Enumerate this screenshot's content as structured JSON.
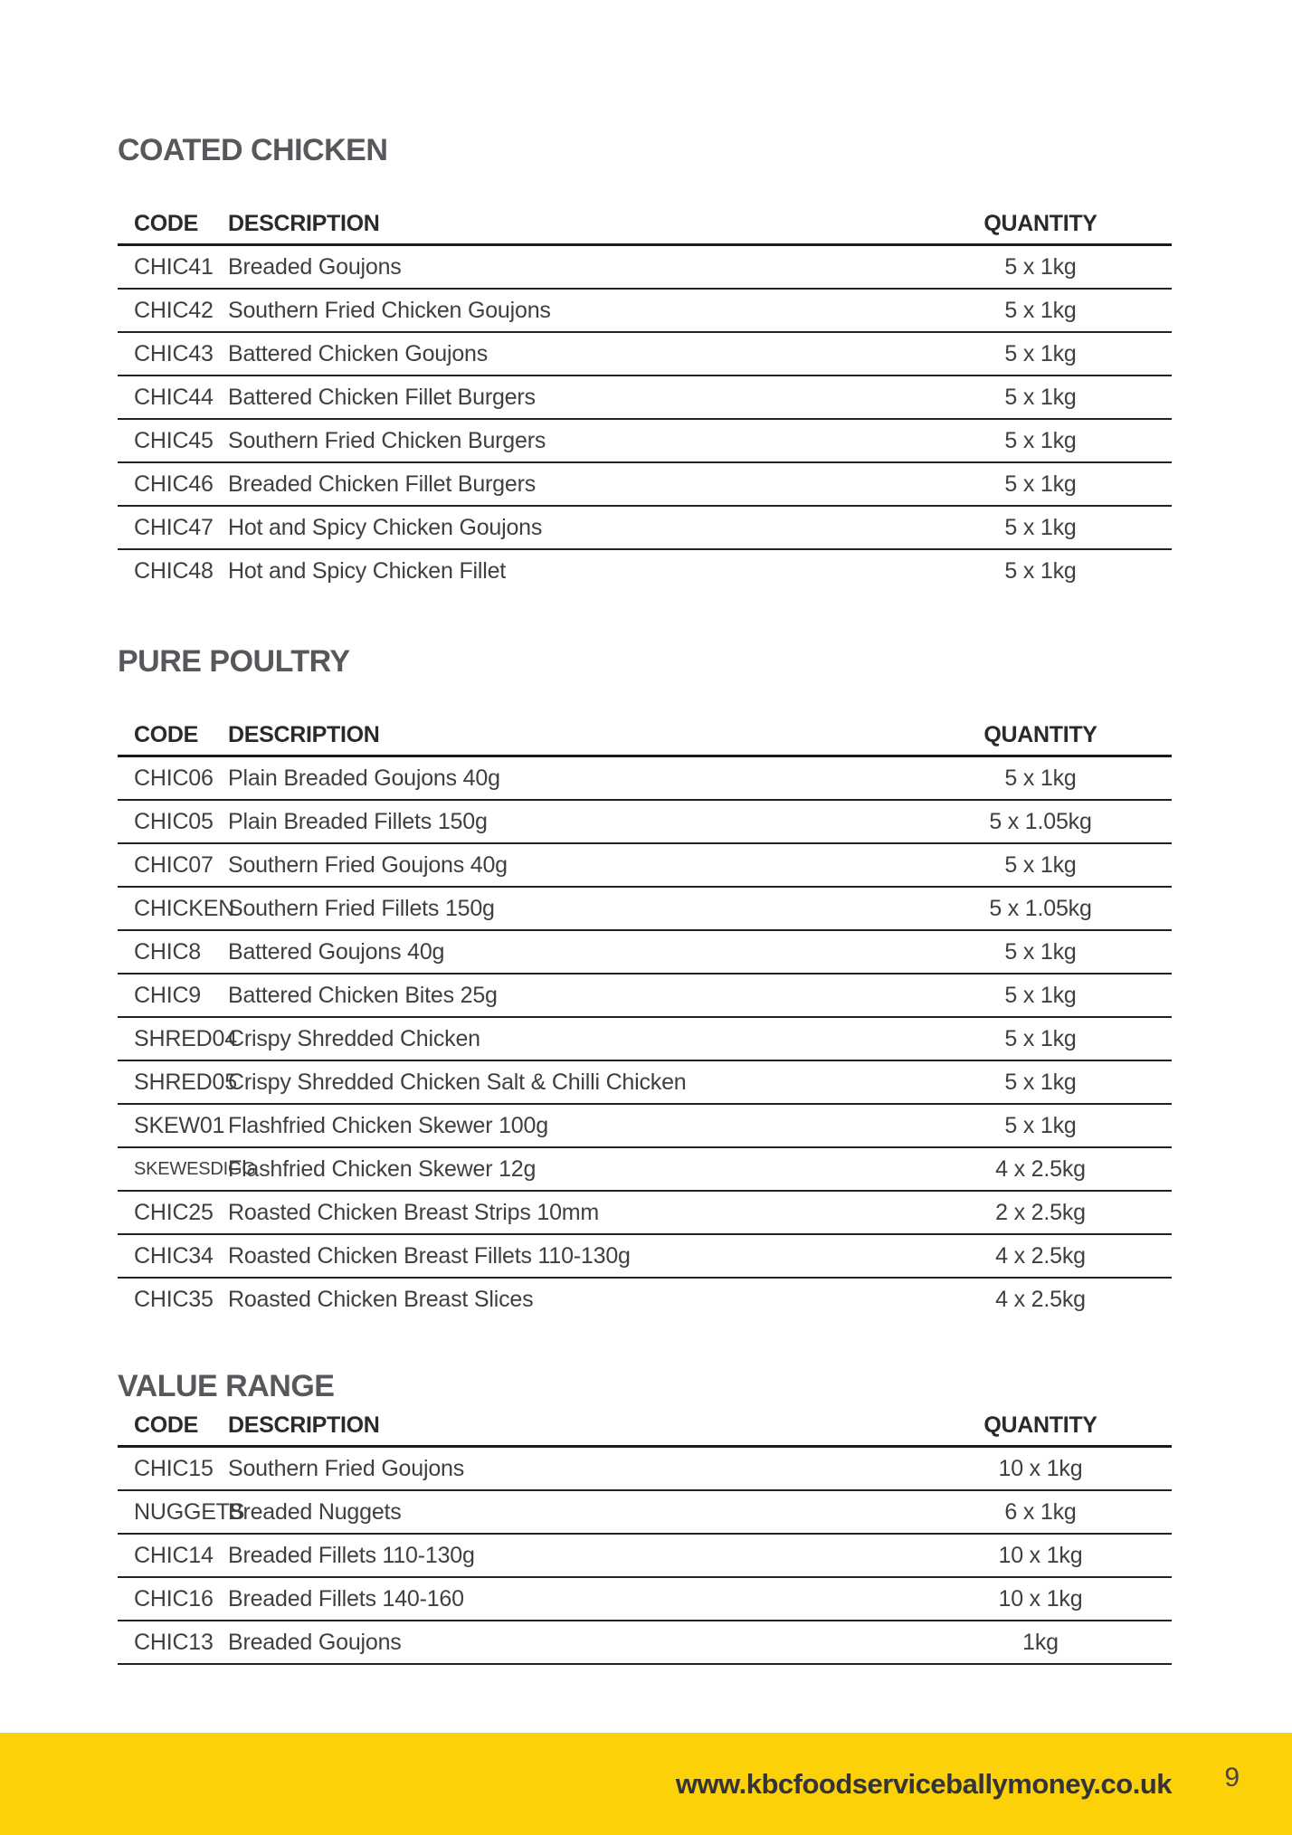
{
  "colors": {
    "accent_yellow": "#FCD108",
    "heading_gray": "#57585C",
    "table_line": "#242023",
    "cell_text": "#3E3F42"
  },
  "sections": [
    {
      "title": "COATED CHICKEN",
      "headers": {
        "code": "CODE",
        "description": "DESCRIPTION",
        "quantity": "QUANTITY"
      },
      "rows": [
        {
          "code": "CHIC41",
          "description": "Breaded Goujons",
          "quantity": "5 x 1kg"
        },
        {
          "code": "CHIC42",
          "description": "Southern Fried Chicken Goujons",
          "quantity": "5 x 1kg"
        },
        {
          "code": "CHIC43",
          "description": "Battered Chicken Goujons",
          "quantity": "5 x 1kg"
        },
        {
          "code": "CHIC44",
          "description": "Battered Chicken Fillet Burgers",
          "quantity": "5 x 1kg"
        },
        {
          "code": "CHIC45",
          "description": "Southern Fried Chicken Burgers",
          "quantity": "5 x 1kg"
        },
        {
          "code": "CHIC46",
          "description": "Breaded Chicken Fillet Burgers",
          "quantity": "5 x 1kg"
        },
        {
          "code": "CHIC47",
          "description": "Hot and Spicy Chicken Goujons",
          "quantity": "5 x 1kg"
        },
        {
          "code": "CHIC48",
          "description": "Hot and Spicy Chicken Fillet",
          "quantity": "5 x 1kg"
        }
      ]
    },
    {
      "title": "PURE POULTRY",
      "headers": {
        "code": "CODE",
        "description": "DESCRIPTION",
        "quantity": "QUANTITY"
      },
      "rows": [
        {
          "code": "CHIC06",
          "description": "Plain Breaded Goujons 40g",
          "quantity": "5 x 1kg"
        },
        {
          "code": "CHIC05",
          "description": "Plain Breaded Fillets 150g",
          "quantity": "5 x 1.05kg"
        },
        {
          "code": "CHIC07",
          "description": "Southern Fried Goujons 40g",
          "quantity": "5 x 1kg"
        },
        {
          "code": "CHICKEN",
          "description": "Southern Fried Fillets 150g",
          "quantity": "5 x 1.05kg"
        },
        {
          "code": "CHIC8",
          "description": "Battered Goujons 40g",
          "quantity": "5 x 1kg"
        },
        {
          "code": "CHIC9",
          "description": "Battered Chicken Bites 25g",
          "quantity": "5 x 1kg"
        },
        {
          "code": "SHRED04",
          "description": "Crispy Shredded Chicken",
          "quantity": "5 x 1kg"
        },
        {
          "code": "SHRED05",
          "description": "Crispy Shredded Chicken Salt & Chilli Chicken",
          "quantity": "5 x 1kg"
        },
        {
          "code": "SKEW01",
          "description": "Flashfried Chicken Skewer 100g",
          "quantity": "5 x 1kg"
        },
        {
          "code": "SKEWESDIGG",
          "description": "Flashfried Chicken Skewer 12g",
          "quantity": "4 x 2.5kg"
        },
        {
          "code": "CHIC25",
          "description": "Roasted Chicken Breast Strips 10mm",
          "quantity": "2 x 2.5kg"
        },
        {
          "code": "CHIC34",
          "description": "Roasted Chicken Breast Fillets 110-130g",
          "quantity": "4 x 2.5kg"
        },
        {
          "code": "CHIC35",
          "description": "Roasted Chicken Breast Slices",
          "quantity": "4 x 2.5kg"
        }
      ]
    },
    {
      "title": "VALUE RANGE",
      "headers": {
        "code": "CODE",
        "description": "DESCRIPTION",
        "quantity": "QUANTITY"
      },
      "rows": [
        {
          "code": "CHIC15",
          "description": "Southern Fried Goujons",
          "quantity": "10 x 1kg"
        },
        {
          "code": "NUGGETS",
          "description": "Breaded Nuggets",
          "quantity": "6 x 1kg"
        },
        {
          "code": "CHIC14",
          "description": "Breaded Fillets 110-130g",
          "quantity": "10 x 1kg"
        },
        {
          "code": "CHIC16",
          "description": "Breaded Fillets 140-160",
          "quantity": "10 x 1kg"
        },
        {
          "code": "CHIC13",
          "description": "Breaded Goujons",
          "quantity": "1kg"
        }
      ]
    }
  ],
  "footer": {
    "website": "www.kbcfoodserviceballymoney.co.uk",
    "page_number": "9"
  }
}
